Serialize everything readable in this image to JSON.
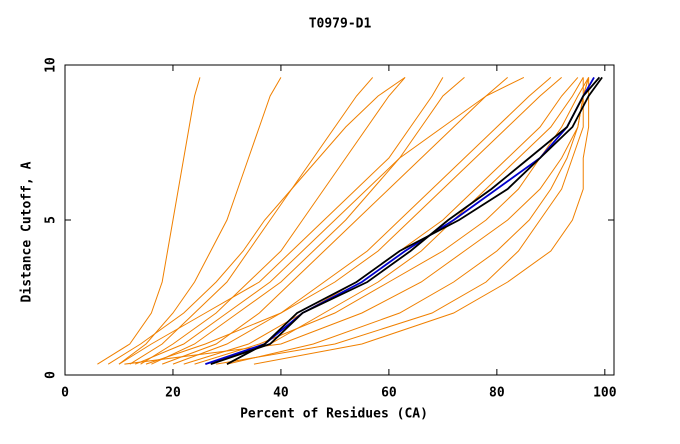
{
  "chart_data": {
    "type": "line",
    "title": "T0979-D1",
    "x_label": "Percent of Residues (CA)",
    "y_label": "Distance Cutoff, A",
    "xlim": [
      0,
      101.7
    ],
    "ylim": [
      0,
      10
    ],
    "xticks": [
      0,
      20,
      40,
      60,
      80,
      100
    ],
    "yticks": [
      0,
      5,
      10
    ],
    "series": [
      {
        "color": "#f08000",
        "x": [
          6,
          12,
          16,
          18,
          19,
          20,
          21,
          22,
          23,
          24,
          25
        ],
        "values": [
          0.35,
          1,
          2,
          3,
          4,
          5,
          6,
          7,
          8,
          9,
          9.6
        ]
      },
      {
        "color": "#f08000",
        "x": [
          10,
          15,
          20,
          24,
          27,
          30,
          32,
          34,
          36,
          38,
          40
        ],
        "values": [
          0.35,
          1,
          2,
          3,
          4,
          5,
          6,
          7,
          8,
          9,
          9.6
        ]
      },
      {
        "color": "#f08000",
        "x": [
          12,
          18,
          24,
          30,
          34,
          38,
          42,
          46,
          50,
          54,
          57
        ],
        "values": [
          0.35,
          1,
          2,
          3,
          4,
          5,
          6,
          7,
          8,
          9,
          9.6
        ]
      },
      {
        "color": "#f08000",
        "x": [
          14,
          20,
          28,
          34,
          40,
          44,
          48,
          52,
          56,
          60,
          63
        ],
        "values": [
          0.35,
          1,
          2,
          3,
          4,
          5,
          6,
          7,
          8,
          9,
          9.6
        ]
      },
      {
        "color": "#f08000",
        "x": [
          16,
          24,
          32,
          40,
          46,
          52,
          57,
          62,
          66,
          70,
          74
        ],
        "values": [
          0.35,
          1,
          2,
          3,
          4,
          5,
          6,
          7,
          8,
          9,
          9.6
        ]
      },
      {
        "color": "#f08000",
        "x": [
          18,
          28,
          36,
          42,
          48,
          54,
          60,
          66,
          72,
          78,
          82
        ],
        "values": [
          0.35,
          1,
          2,
          3,
          4,
          5,
          6,
          7,
          8,
          9,
          9.6
        ]
      },
      {
        "color": "#f08000",
        "x": [
          20,
          30,
          40,
          48,
          56,
          62,
          68,
          74,
          80,
          86,
          90
        ],
        "values": [
          0.35,
          1,
          2,
          3,
          4,
          5,
          6,
          7,
          8,
          9,
          9.6
        ]
      },
      {
        "color": "#f08000",
        "x": [
          22,
          34,
          44,
          54,
          62,
          70,
          76,
          82,
          88,
          92,
          95
        ],
        "values": [
          0.35,
          1,
          2,
          3,
          4,
          5,
          6,
          7,
          8,
          9,
          9.6
        ]
      },
      {
        "color": "#f08000",
        "x": [
          24,
          36,
          50,
          60,
          70,
          78,
          84,
          88,
          92,
          95,
          97
        ],
        "values": [
          0.35,
          1,
          2,
          3,
          4,
          5,
          6,
          7,
          8,
          9,
          9.6
        ]
      },
      {
        "color": "#f08000",
        "x": [
          11,
          40,
          55,
          66,
          74,
          82,
          88,
          92,
          95,
          96,
          97
        ],
        "values": [
          0.35,
          1,
          2,
          3,
          4,
          5,
          6,
          7,
          8,
          9,
          9.6
        ]
      },
      {
        "color": "#f08000",
        "x": [
          30,
          46,
          62,
          72,
          80,
          86,
          90,
          93,
          95,
          96,
          96
        ],
        "values": [
          0.35,
          1,
          2,
          3,
          4,
          5,
          6,
          7,
          8,
          9,
          9.6
        ]
      },
      {
        "color": "#f08000",
        "x": [
          35,
          55,
          72,
          82,
          90,
          94,
          96,
          96,
          97,
          97,
          97
        ],
        "values": [
          0.35,
          1,
          2,
          3,
          4,
          5,
          6,
          7,
          8,
          9,
          9.6
        ]
      },
      {
        "color": "#f08000",
        "x": [
          8,
          14,
          22,
          28,
          33,
          37,
          42,
          47,
          52,
          58,
          63
        ],
        "values": [
          0.35,
          1,
          2,
          3,
          4,
          5,
          6,
          7,
          8,
          9,
          9.6
        ]
      },
      {
        "color": "#f08000",
        "x": [
          13,
          22,
          30,
          38,
          44,
          50,
          56,
          62,
          70,
          78,
          85
        ],
        "values": [
          0.35,
          1,
          2,
          3,
          4,
          5,
          6,
          7,
          8,
          9,
          9.6
        ]
      },
      {
        "color": "#f08000",
        "x": [
          26,
          38,
          48,
          58,
          66,
          72,
          78,
          84,
          90,
          94,
          96
        ],
        "values": [
          0.35,
          1,
          2,
          3,
          4,
          5,
          6,
          7,
          8,
          9,
          9.6
        ]
      },
      {
        "color": "#f08000",
        "x": [
          10,
          16,
          26,
          36,
          42,
          48,
          54,
          60,
          64,
          68,
          70
        ],
        "values": [
          0.35,
          1,
          2,
          3,
          4,
          5,
          6,
          7,
          8,
          9,
          9.6
        ]
      },
      {
        "color": "#f08000",
        "x": [
          28,
          50,
          68,
          78,
          84,
          88,
          92,
          94,
          96,
          96,
          97
        ],
        "values": [
          0.35,
          1,
          2,
          3,
          4,
          5,
          6,
          7,
          8,
          9,
          9.6
        ]
      },
      {
        "color": "#f08000",
        "x": [
          15,
          26,
          40,
          50,
          58,
          64,
          70,
          76,
          82,
          88,
          92
        ],
        "values": [
          0.35,
          1,
          2,
          3,
          4,
          5,
          6,
          7,
          8,
          9,
          9.6
        ]
      },
      {
        "color": "#0000cc",
        "x": [
          26,
          37,
          44,
          55,
          63,
          72,
          80,
          88,
          93,
          96,
          98
        ],
        "values": [
          0.35,
          1,
          2,
          3,
          4,
          5,
          6,
          7,
          8,
          9,
          9.6
        ]
      },
      {
        "color": "#000000",
        "x": [
          27,
          38,
          44,
          56,
          64,
          71,
          79,
          86,
          93,
          96,
          99
        ],
        "values": [
          0.35,
          1,
          2,
          3,
          4,
          5,
          6,
          7,
          8,
          9,
          9.6
        ]
      },
      {
        "color": "#000000",
        "x": [
          30,
          37,
          43,
          54,
          62,
          73,
          82,
          88,
          94,
          97,
          99.5
        ],
        "values": [
          0.35,
          1,
          2,
          3,
          4,
          5,
          6,
          7,
          8,
          9,
          9.6
        ]
      }
    ]
  }
}
